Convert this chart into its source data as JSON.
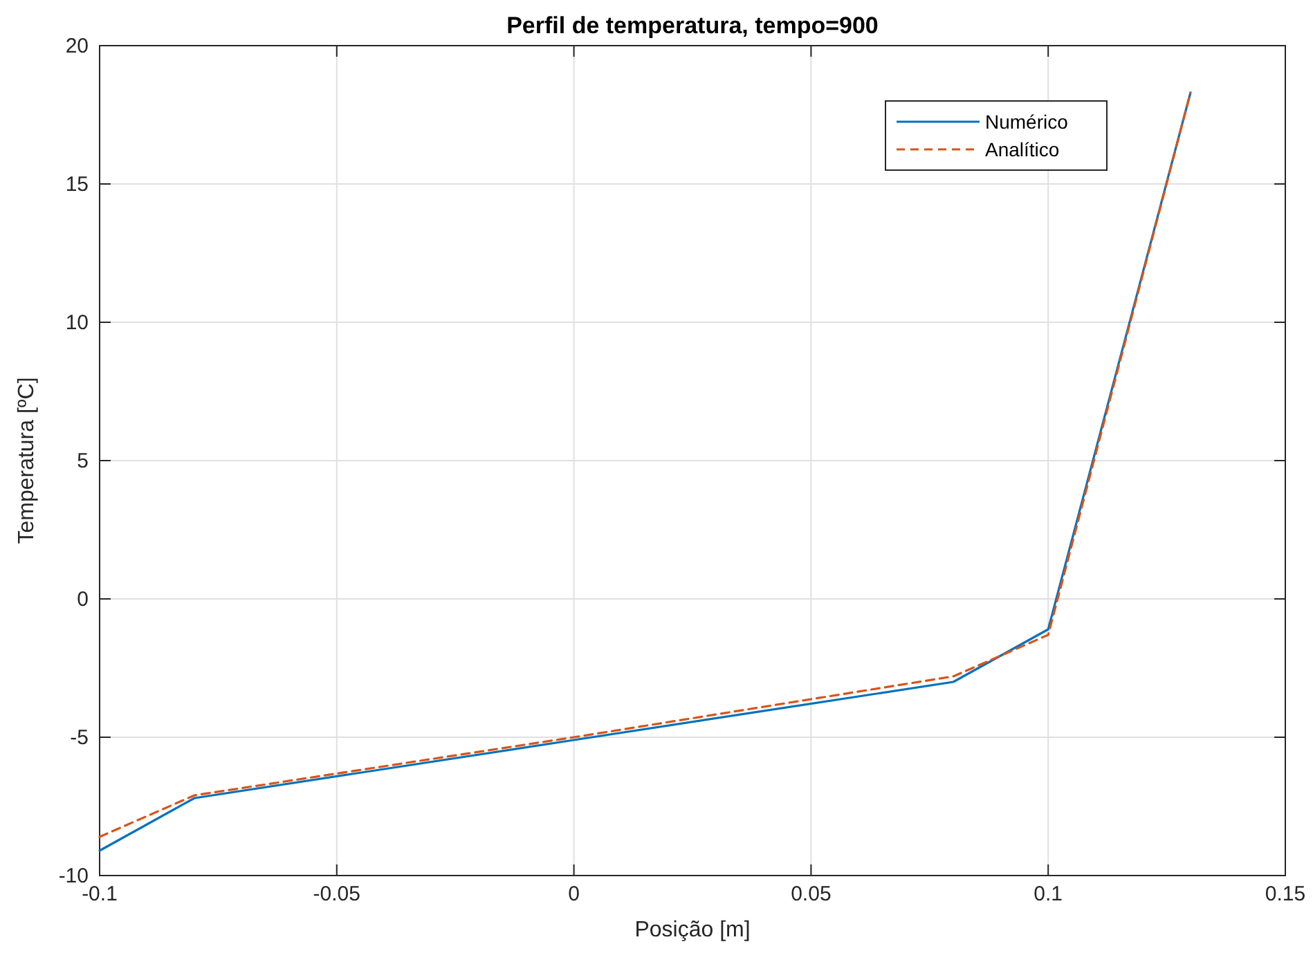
{
  "chart_data": {
    "type": "line",
    "title": "Perfil de temperatura, tempo=900",
    "xlabel": "Posição [m]",
    "ylabel": "Temperatura [ºC]",
    "xlim": [
      -0.1,
      0.15
    ],
    "xticks": [
      -0.1,
      -0.05,
      0,
      0.05,
      0.1,
      0.15
    ],
    "ylim": [
      -10,
      20
    ],
    "yticks": [
      -10,
      -5,
      0,
      5,
      10,
      15,
      20
    ],
    "grid": true,
    "legend": "top right",
    "x": [
      -0.1,
      -0.08,
      0,
      0.08,
      0.1,
      0.13
    ],
    "series": [
      {
        "name": "Numérico",
        "color": "#0072bd",
        "line_style": "solid",
        "values": [
          -9.1,
          -7.2,
          -5.1,
          -3.0,
          -1.1,
          18.3
        ]
      },
      {
        "name": "Analítico",
        "color": "#d95319",
        "line_style": "dashed",
        "values": [
          -8.6,
          -7.1,
          -5.0,
          -2.8,
          -1.3,
          18.3
        ]
      }
    ]
  }
}
